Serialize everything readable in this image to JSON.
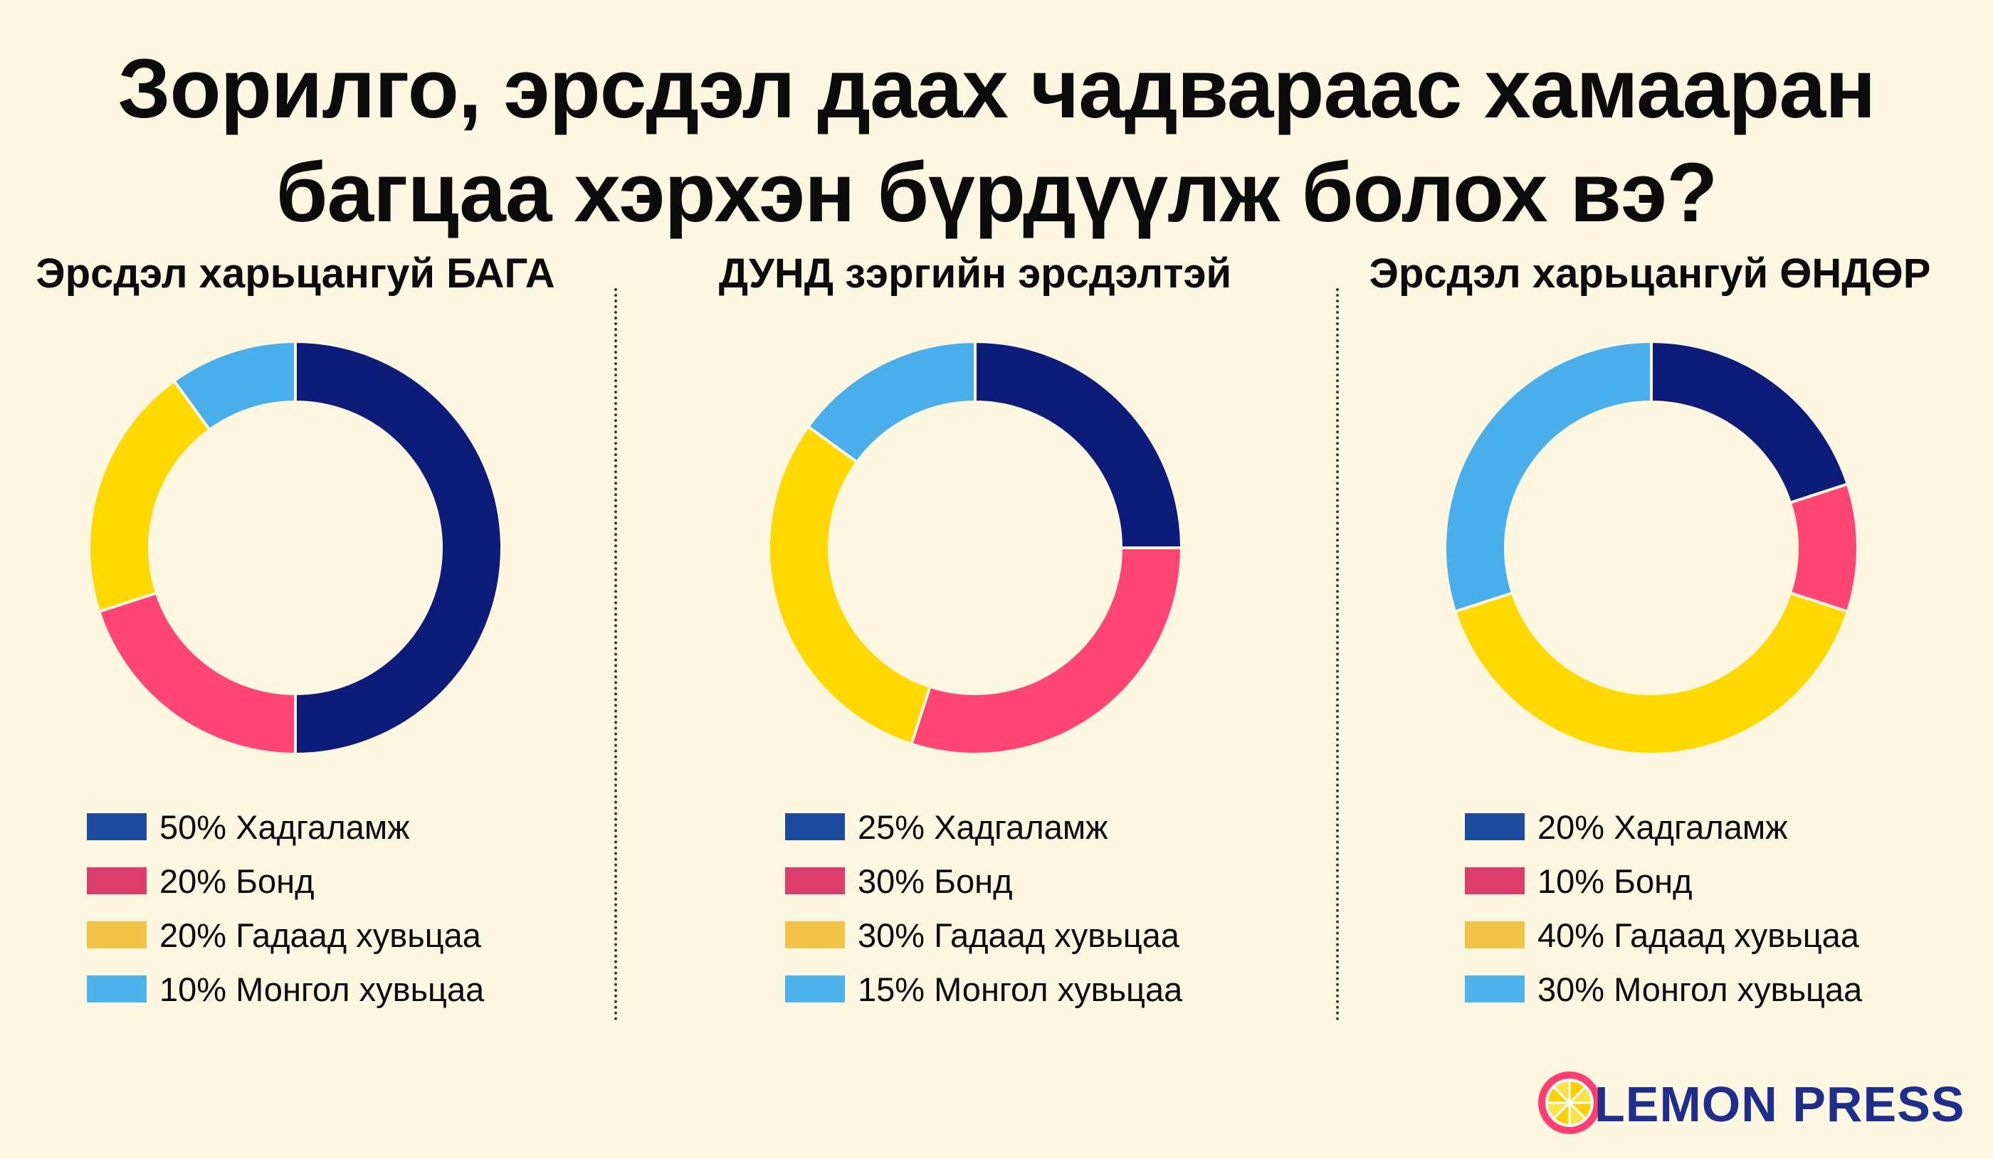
{
  "title": {
    "line1": "Зорилго, эрсдэл даах чадвараас хамааран",
    "line2": "багцаа хэрхэн бүрдүүлж болох вэ?"
  },
  "colors": {
    "savings": "#0d1c78",
    "bond": "#ff4574",
    "foreign_currency": "#ffd800",
    "mongol_currency": "#49aeea",
    "legend_savings": "#1c4a9e",
    "legend_bond": "#dc3d6d",
    "legend_foreign_currency": "#f2c246",
    "legend_mongol_currency": "#4db3eb"
  },
  "chart_data": [
    {
      "type": "pie",
      "title": "Эрсдэл харьцангуй БАГА",
      "categories": [
        "Хадгаламж",
        "Бонд",
        "Гадаад хувьцаа",
        "Монгол хувьцаа"
      ],
      "values": [
        50,
        20,
        20,
        10
      ],
      "labels": [
        "50% Хадгаламж",
        "20% Бонд",
        "20% Гадаад хувьцаа",
        "10% Монгол хувьцаа"
      ]
    },
    {
      "type": "pie",
      "title": "ДУНД зэргийн эрсдэлтэй",
      "categories": [
        "Хадгаламж",
        "Бонд",
        "Гадаад хувьцаа",
        "Монгол хувьцаа"
      ],
      "values": [
        25,
        30,
        30,
        15
      ],
      "labels": [
        "25% Хадгаламж",
        "30% Бонд",
        "30% Гадаад хувьцаа",
        "15% Монгол хувьцаа"
      ]
    },
    {
      "type": "pie",
      "title": "Эрсдэл харьцангуй ӨНДӨР",
      "categories": [
        "Хадгаламж",
        "Бонд",
        "Гадаад хувьцаа",
        "Монгол хувьцаа"
      ],
      "values": [
        20,
        10,
        40,
        30
      ],
      "labels": [
        "20% Хадгаламж",
        "10% Бонд",
        "40% Гадаад хувьцаа",
        "30% Монгол хувьцаа"
      ]
    }
  ],
  "logo": {
    "text": "LEMON PRESS",
    "icon": "lemon-slice-icon"
  }
}
